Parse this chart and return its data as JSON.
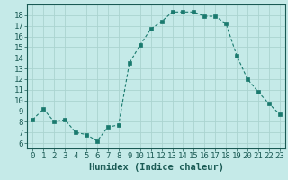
{
  "x": [
    0,
    1,
    2,
    3,
    4,
    5,
    6,
    7,
    8,
    9,
    10,
    11,
    12,
    13,
    14,
    15,
    16,
    17,
    18,
    19,
    20,
    21,
    22,
    23
  ],
  "y": [
    8.2,
    9.2,
    8.0,
    8.2,
    7.0,
    6.8,
    6.2,
    7.5,
    7.7,
    13.5,
    15.2,
    16.7,
    17.4,
    18.3,
    18.3,
    18.3,
    17.9,
    17.9,
    17.2,
    14.2,
    12.0,
    10.8,
    9.7,
    8.7
  ],
  "line_color": "#1a7a6e",
  "marker": "s",
  "marker_size": 2.5,
  "bg_color": "#c5eae8",
  "grid_color": "#aad4d0",
  "xlabel": "Humidex (Indice chaleur)",
  "xlim": [
    -0.5,
    23.5
  ],
  "ylim": [
    5.5,
    19.0
  ],
  "xticks": [
    0,
    1,
    2,
    3,
    4,
    5,
    6,
    7,
    8,
    9,
    10,
    11,
    12,
    13,
    14,
    15,
    16,
    17,
    18,
    19,
    20,
    21,
    22,
    23
  ],
  "yticks": [
    6,
    7,
    8,
    9,
    10,
    11,
    12,
    13,
    14,
    15,
    16,
    17,
    18
  ],
  "tick_label_fontsize": 6.5,
  "xlabel_fontsize": 7.5,
  "tick_color": "#1a5a54"
}
